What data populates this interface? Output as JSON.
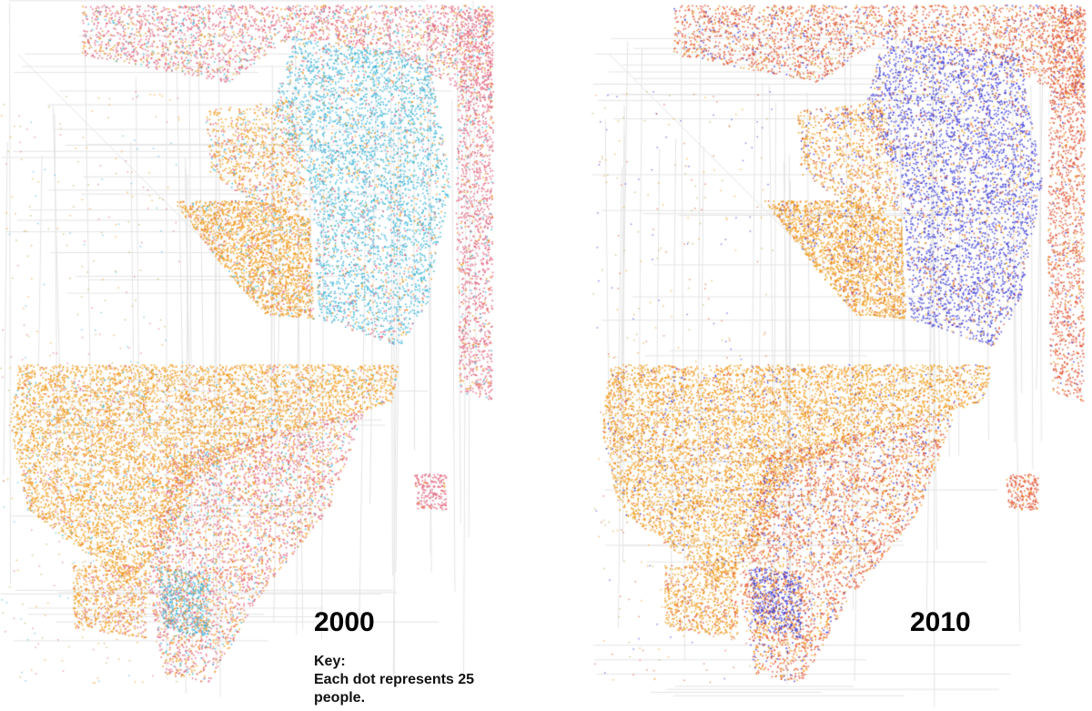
{
  "maps": [
    {
      "year": "2000",
      "colors": {
        "black": "#3ab4d8",
        "hispanic": "#f09a1a",
        "white": "#e0607a",
        "other": "#c0a040"
      }
    },
    {
      "year": "2010",
      "colors": {
        "black": "#3a3ad8",
        "hispanic": "#f09a1a",
        "white": "#e05030",
        "other": "#c0a040"
      }
    }
  ],
  "key": {
    "title": "Key:",
    "text": "Each dot represents 25 people."
  }
}
